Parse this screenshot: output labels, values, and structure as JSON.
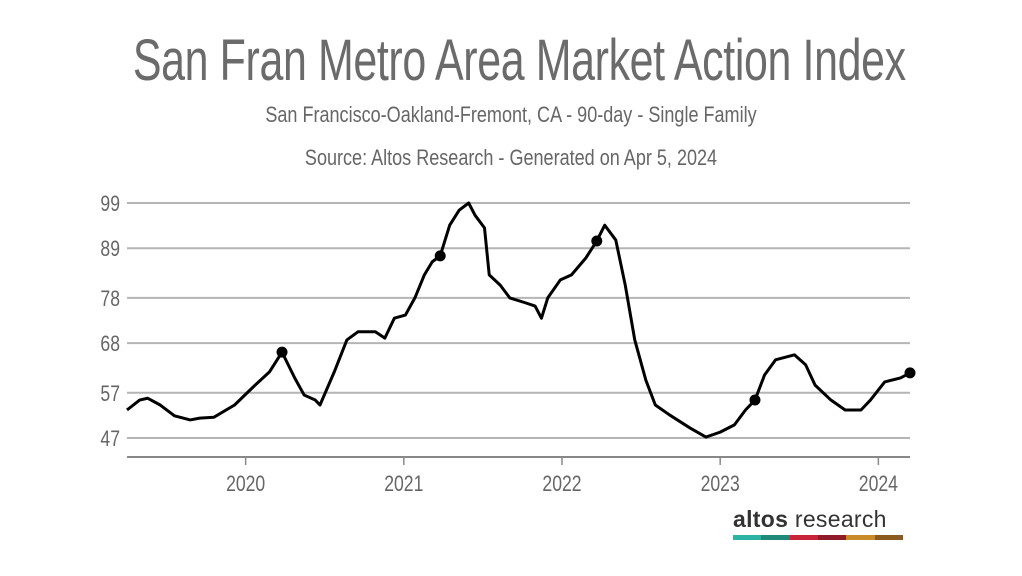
{
  "header": {
    "title": "San Fran Metro Area Market Action Index",
    "subtitle": "San Francisco-Oakland-Fremont, CA - 90-day - Single Family",
    "source": "Source: Altos Research - Generated on Apr 5, 2024"
  },
  "logo": {
    "bold": "altos",
    "light": " research",
    "colors": [
      "#2bb3a3",
      "#1f8a78",
      "#c8243a",
      "#8e1a2a",
      "#c98a2a",
      "#8a5a1e"
    ]
  },
  "chart_data": {
    "type": "line",
    "title": "San Fran Metro Area Market Action Index",
    "xlabel": "",
    "ylabel": "",
    "xlim": [
      2019.25,
      2024.2
    ],
    "ylim": [
      42.8,
      99.5
    ],
    "grid": true,
    "line_color": "#000000",
    "x_ticks": [
      2020,
      2021,
      2022,
      2023,
      2024
    ],
    "y_ticks": [
      47,
      57,
      68,
      78,
      89,
      99
    ],
    "series": [
      {
        "x": [
          2019.25,
          2019.33,
          2019.38,
          2019.46,
          2019.55,
          2019.65,
          2019.71,
          2019.8,
          2019.93,
          2020.06,
          2020.15,
          2020.23,
          2020.31,
          2020.37,
          2020.44,
          2020.47,
          2020.56,
          2020.64,
          2020.71,
          2020.82,
          2020.88,
          2020.94,
          2021.01,
          2021.07,
          2021.13,
          2021.18,
          2021.23,
          2021.29,
          2021.35,
          2021.41,
          2021.45,
          2021.51,
          2021.54,
          2021.61,
          2021.67,
          2021.77,
          2021.83,
          2021.87,
          2021.91,
          2021.99,
          2022.06,
          2022.15,
          2022.22,
          2022.27,
          2022.34,
          2022.4,
          2022.46,
          2022.53,
          2022.59,
          2022.68,
          2022.81,
          2022.91,
          2023.0,
          2023.09,
          2023.16,
          2023.22,
          2023.28,
          2023.35,
          2023.47,
          2023.54,
          2023.6,
          2023.7,
          2023.79,
          2023.89,
          2023.95,
          2024.04,
          2024.14,
          2024.2
        ],
        "y": [
          53.2,
          55.4,
          55.8,
          54.3,
          51.9,
          51.0,
          51.4,
          51.6,
          54.3,
          58.7,
          61.6,
          66.0,
          60.3,
          56.5,
          55.4,
          54.3,
          61.6,
          68.7,
          70.5,
          70.5,
          69.1,
          73.5,
          74.2,
          78.0,
          83.1,
          86.0,
          87.3,
          94.1,
          97.4,
          99.0,
          96.3,
          93.5,
          83.1,
          80.8,
          78.0,
          76.9,
          76.2,
          73.5,
          78.0,
          82.0,
          83.1,
          86.8,
          90.6,
          94.1,
          90.8,
          80.8,
          68.7,
          59.8,
          54.3,
          52.1,
          49.2,
          47.2,
          48.3,
          49.9,
          53.2,
          55.4,
          60.9,
          64.3,
          65.4,
          63.2,
          58.7,
          55.4,
          53.2,
          53.2,
          55.4,
          59.4,
          60.3,
          61.4
        ]
      }
    ],
    "markers": {
      "x": [
        2020.23,
        2021.23,
        2022.22,
        2023.22,
        2024.2
      ],
      "y": [
        66.0,
        87.3,
        90.6,
        55.4,
        61.4
      ]
    }
  }
}
